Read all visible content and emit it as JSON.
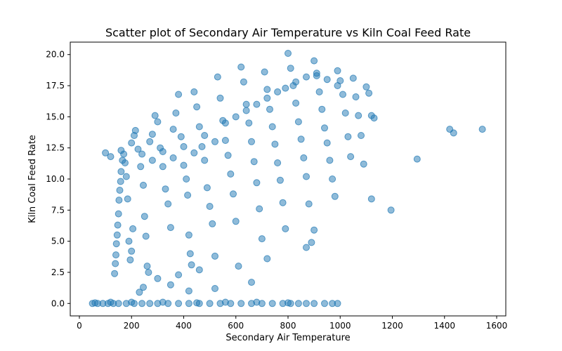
{
  "chart_data": {
    "type": "scatter",
    "title": "Scatter plot of Secondary Air Temperature vs Kiln Coal Feed Rate",
    "xlabel": "Secondary Air Temperature",
    "ylabel": "Kiln Coal Feed Rate",
    "xlim": [
      -35,
      1635
    ],
    "ylim": [
      -1.0,
      21.0
    ],
    "xticks": [
      0,
      200,
      400,
      600,
      800,
      1000,
      1200,
      1400,
      1600
    ],
    "xtick_labels": [
      "0",
      "200",
      "400",
      "600",
      "800",
      "1000",
      "1200",
      "1400",
      "1600"
    ],
    "yticks": [
      0.0,
      2.5,
      5.0,
      7.5,
      10.0,
      12.5,
      15.0,
      17.5,
      20.0
    ],
    "ytick_labels": [
      "0.0",
      "2.5",
      "5.0",
      "7.5",
      "10.0",
      "12.5",
      "15.0",
      "17.5",
      "20.0"
    ],
    "grid": false,
    "marker_color": "#1f77b4",
    "marker_alpha": 0.5,
    "points": [
      [
        50,
        0
      ],
      [
        70,
        0
      ],
      [
        90,
        0
      ],
      [
        110,
        0
      ],
      [
        130,
        0
      ],
      [
        150,
        0
      ],
      [
        180,
        0
      ],
      [
        210,
        0
      ],
      [
        240,
        0
      ],
      [
        270,
        0
      ],
      [
        300,
        0
      ],
      [
        340,
        0
      ],
      [
        380,
        0
      ],
      [
        420,
        0
      ],
      [
        460,
        0
      ],
      [
        500,
        0
      ],
      [
        540,
        0
      ],
      [
        580,
        0
      ],
      [
        620,
        0
      ],
      [
        660,
        0
      ],
      [
        700,
        0
      ],
      [
        740,
        0
      ],
      [
        780,
        0
      ],
      [
        810,
        0
      ],
      [
        840,
        0
      ],
      [
        870,
        0
      ],
      [
        900,
        0
      ],
      [
        940,
        0
      ],
      [
        970,
        0
      ],
      [
        990,
        0
      ],
      [
        60,
        0.05
      ],
      [
        120,
        0.1
      ],
      [
        200,
        0.1
      ],
      [
        320,
        0.1
      ],
      [
        450,
        0.05
      ],
      [
        560,
        0.1
      ],
      [
        680,
        0.1
      ],
      [
        800,
        0.05
      ],
      [
        135,
        2.4
      ],
      [
        138,
        3.2
      ],
      [
        140,
        3.9
      ],
      [
        142,
        4.8
      ],
      [
        145,
        5.5
      ],
      [
        147,
        6.3
      ],
      [
        150,
        7.2
      ],
      [
        152,
        8.3
      ],
      [
        155,
        9.1
      ],
      [
        158,
        9.8
      ],
      [
        160,
        10.6
      ],
      [
        165,
        11.5
      ],
      [
        170,
        12.0
      ],
      [
        175,
        11.3
      ],
      [
        180,
        10.2
      ],
      [
        185,
        8.4
      ],
      [
        190,
        5.0
      ],
      [
        195,
        3.5
      ],
      [
        200,
        4.2
      ],
      [
        205,
        6.0
      ],
      [
        210,
        13.5
      ],
      [
        215,
        13.9
      ],
      [
        225,
        12.4
      ],
      [
        235,
        11.0
      ],
      [
        245,
        9.5
      ],
      [
        250,
        7.0
      ],
      [
        255,
        5.4
      ],
      [
        260,
        3.0
      ],
      [
        265,
        2.5
      ],
      [
        270,
        13.0
      ],
      [
        280,
        13.6
      ],
      [
        290,
        15.1
      ],
      [
        300,
        14.6
      ],
      [
        310,
        12.5
      ],
      [
        320,
        11.0
      ],
      [
        330,
        9.2
      ],
      [
        340,
        8.0
      ],
      [
        350,
        6.1
      ],
      [
        360,
        14.0
      ],
      [
        370,
        15.3
      ],
      [
        380,
        16.8
      ],
      [
        390,
        13.4
      ],
      [
        400,
        11.1
      ],
      [
        410,
        10.0
      ],
      [
        415,
        8.7
      ],
      [
        420,
        5.5
      ],
      [
        425,
        4.0
      ],
      [
        430,
        3.1
      ],
      [
        440,
        17.0
      ],
      [
        450,
        15.8
      ],
      [
        460,
        14.2
      ],
      [
        470,
        12.6
      ],
      [
        480,
        11.5
      ],
      [
        490,
        9.3
      ],
      [
        500,
        7.8
      ],
      [
        510,
        6.4
      ],
      [
        520,
        3.8
      ],
      [
        530,
        18.2
      ],
      [
        540,
        16.5
      ],
      [
        550,
        14.7
      ],
      [
        560,
        13.1
      ],
      [
        570,
        11.9
      ],
      [
        580,
        10.4
      ],
      [
        590,
        8.8
      ],
      [
        600,
        6.6
      ],
      [
        610,
        3.0
      ],
      [
        620,
        19.0
      ],
      [
        630,
        17.8
      ],
      [
        640,
        16.0
      ],
      [
        650,
        14.5
      ],
      [
        660,
        13.0
      ],
      [
        670,
        11.4
      ],
      [
        680,
        9.7
      ],
      [
        690,
        7.6
      ],
      [
        700,
        5.2
      ],
      [
        710,
        18.6
      ],
      [
        720,
        17.2
      ],
      [
        730,
        15.6
      ],
      [
        740,
        14.2
      ],
      [
        750,
        12.8
      ],
      [
        760,
        11.3
      ],
      [
        770,
        9.9
      ],
      [
        780,
        8.1
      ],
      [
        790,
        6.0
      ],
      [
        800,
        20.1
      ],
      [
        810,
        18.9
      ],
      [
        820,
        17.5
      ],
      [
        830,
        16.1
      ],
      [
        840,
        14.6
      ],
      [
        850,
        13.2
      ],
      [
        860,
        11.7
      ],
      [
        870,
        10.2
      ],
      [
        880,
        8.0
      ],
      [
        890,
        4.9
      ],
      [
        900,
        19.5
      ],
      [
        910,
        18.3
      ],
      [
        920,
        17.0
      ],
      [
        930,
        15.6
      ],
      [
        940,
        14.1
      ],
      [
        950,
        12.9
      ],
      [
        960,
        11.5
      ],
      [
        970,
        10.0
      ],
      [
        980,
        8.6
      ],
      [
        990,
        18.7
      ],
      [
        1000,
        17.9
      ],
      [
        1010,
        16.8
      ],
      [
        1020,
        15.3
      ],
      [
        1030,
        13.4
      ],
      [
        1040,
        11.8
      ],
      [
        1050,
        18.1
      ],
      [
        1060,
        16.6
      ],
      [
        1070,
        15.1
      ],
      [
        1080,
        13.5
      ],
      [
        1090,
        11.2
      ],
      [
        1100,
        17.4
      ],
      [
        1110,
        16.9
      ],
      [
        1120,
        15.1
      ],
      [
        1130,
        14.9
      ],
      [
        100,
        12.1
      ],
      [
        120,
        11.8
      ],
      [
        160,
        12.3
      ],
      [
        200,
        12.9
      ],
      [
        240,
        12.0
      ],
      [
        280,
        11.5
      ],
      [
        320,
        12.2
      ],
      [
        360,
        11.7
      ],
      [
        400,
        12.6
      ],
      [
        440,
        12.1
      ],
      [
        480,
        13.5
      ],
      [
        520,
        13.0
      ],
      [
        560,
        14.5
      ],
      [
        600,
        15.0
      ],
      [
        640,
        15.5
      ],
      [
        680,
        16.0
      ],
      [
        720,
        16.5
      ],
      [
        760,
        17.0
      ],
      [
        790,
        17.3
      ],
      [
        830,
        17.8
      ],
      [
        870,
        18.2
      ],
      [
        910,
        18.5
      ],
      [
        950,
        18.0
      ],
      [
        990,
        17.5
      ],
      [
        1120,
        8.4
      ],
      [
        1195,
        7.5
      ],
      [
        1295,
        11.6
      ],
      [
        1420,
        14.0
      ],
      [
        1435,
        13.7
      ],
      [
        1545,
        14.0
      ],
      [
        230,
        0.9
      ],
      [
        245,
        1.3
      ],
      [
        300,
        2.0
      ],
      [
        350,
        1.5
      ],
      [
        380,
        2.3
      ],
      [
        420,
        1.0
      ],
      [
        460,
        2.7
      ],
      [
        520,
        1.2
      ],
      [
        660,
        1.7
      ],
      [
        720,
        3.6
      ],
      [
        870,
        4.5
      ],
      [
        900,
        5.9
      ]
    ]
  }
}
